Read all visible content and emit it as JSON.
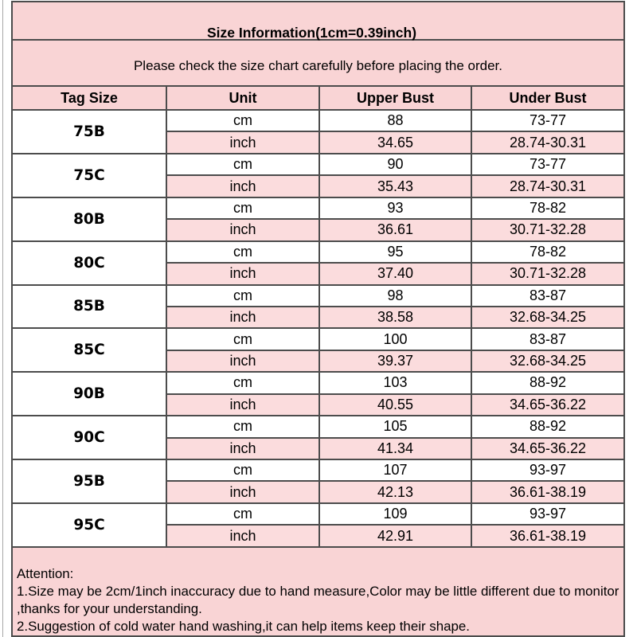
{
  "table": {
    "title": "Size Information(1cm=0.39inch)",
    "subtitle": "Please check the size chart carefully before placing the order.",
    "columns": [
      "Tag Size",
      "Unit",
      "Upper Bust",
      "Under Bust"
    ],
    "units": {
      "cm": "cm",
      "inch": "inch"
    },
    "sizes": [
      {
        "tag": "75B",
        "cm": {
          "upper": "88",
          "under": "73-77"
        },
        "inch": {
          "upper": "34.65",
          "under": "28.74-30.31"
        }
      },
      {
        "tag": "75C",
        "cm": {
          "upper": "90",
          "under": "73-77"
        },
        "inch": {
          "upper": "35.43",
          "under": "28.74-30.31"
        }
      },
      {
        "tag": "80B",
        "cm": {
          "upper": "93",
          "under": "78-82"
        },
        "inch": {
          "upper": "36.61",
          "under": "30.71-32.28"
        }
      },
      {
        "tag": "80C",
        "cm": {
          "upper": "95",
          "under": "78-82"
        },
        "inch": {
          "upper": "37.40",
          "under": "30.71-32.28"
        }
      },
      {
        "tag": "85B",
        "cm": {
          "upper": "98",
          "under": "83-87"
        },
        "inch": {
          "upper": "38.58",
          "under": "32.68-34.25"
        }
      },
      {
        "tag": "85C",
        "cm": {
          "upper": "100",
          "under": "83-87"
        },
        "inch": {
          "upper": "39.37",
          "under": "32.68-34.25"
        }
      },
      {
        "tag": "90B",
        "cm": {
          "upper": "103",
          "under": "88-92"
        },
        "inch": {
          "upper": "40.55",
          "under": "34.65-36.22"
        }
      },
      {
        "tag": "90C",
        "cm": {
          "upper": "105",
          "under": "88-92"
        },
        "inch": {
          "upper": "41.34",
          "under": "34.65-36.22"
        }
      },
      {
        "tag": "95B",
        "cm": {
          "upper": "107",
          "under": "93-97"
        },
        "inch": {
          "upper": "42.13",
          "under": "36.61-38.19"
        }
      },
      {
        "tag": "95C",
        "cm": {
          "upper": "109",
          "under": "93-97"
        },
        "inch": {
          "upper": "42.91",
          "under": "36.61-38.19"
        }
      }
    ],
    "attention": {
      "heading": "Attention:",
      "lines": [
        "1.Size may be 2cm/1inch inaccuracy due to hand measure,Color may be little different due to monitor",
        ",thanks for your understanding.",
        "2.Suggestion of cold water hand washing,it can help items keep their shape."
      ]
    }
  },
  "colors": {
    "header_pink": "#f9d4d5",
    "row_pink": "#fbdcdd",
    "border_inner": "#4c4c4c",
    "border_outer": "#303030",
    "edge_line": "#a8a8a8",
    "text": "#000000"
  }
}
